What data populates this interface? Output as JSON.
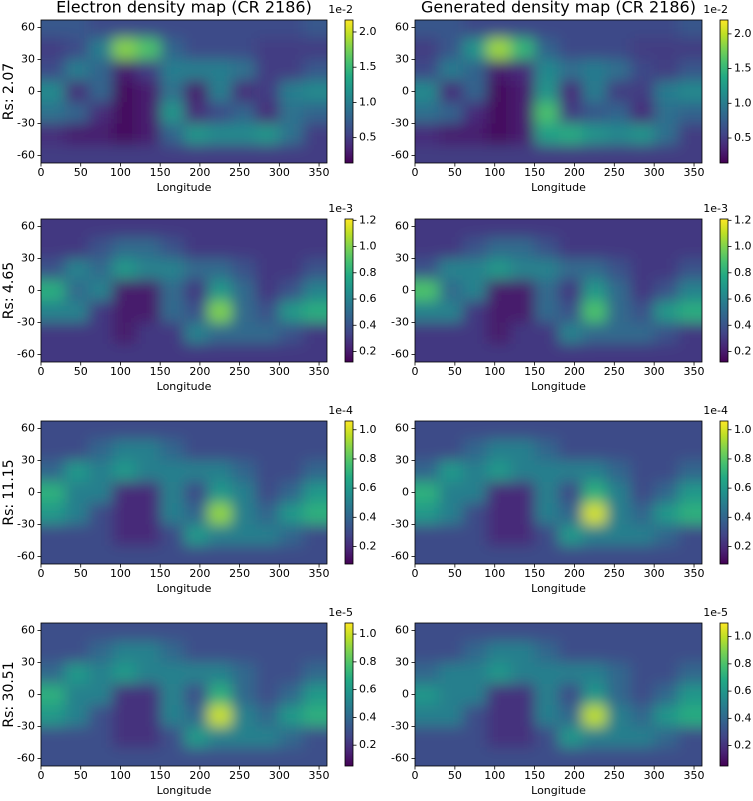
{
  "chart_data": [
    {
      "type": "heatmap",
      "title": "Electron density map (CR 2186)",
      "ylabel": "Rs: 2.07",
      "xlabel": "Longitude",
      "colormap": "viridis",
      "xlim": [
        0,
        360
      ],
      "ylim": [
        -67,
        67
      ],
      "xticks": [
        0,
        50,
        100,
        150,
        200,
        250,
        300,
        350
      ],
      "yticks": [
        -60,
        -30,
        0,
        30,
        60
      ],
      "x": [
        15,
        45,
        75,
        105,
        135,
        165,
        195,
        225,
        255,
        285,
        315,
        345
      ],
      "y": [
        60,
        40,
        20,
        0,
        -20,
        -40,
        -60
      ],
      "z": [
        [
          0.7,
          0.7,
          0.6,
          0.6,
          0.6,
          0.6,
          0.6,
          0.6,
          0.6,
          0.6,
          0.6,
          0.7
        ],
        [
          0.5,
          0.6,
          1.0,
          1.8,
          1.6,
          0.8,
          0.6,
          0.6,
          0.6,
          0.5,
          0.5,
          0.5
        ],
        [
          0.6,
          1.0,
          0.8,
          0.3,
          0.5,
          1.0,
          1.0,
          1.0,
          0.9,
          0.5,
          0.5,
          0.7
        ],
        [
          1.1,
          0.4,
          0.8,
          0.2,
          0.3,
          0.9,
          0.3,
          1.0,
          0.4,
          0.5,
          1.0,
          1.1
        ],
        [
          0.9,
          0.8,
          0.4,
          0.2,
          0.3,
          1.2,
          0.4,
          0.6,
          0.8,
          0.4,
          0.9,
          0.8
        ],
        [
          0.4,
          0.3,
          0.3,
          0.2,
          0.3,
          0.8,
          1.2,
          1.1,
          1.1,
          1.2,
          0.9,
          0.5
        ],
        [
          0.5,
          0.5,
          0.5,
          0.5,
          0.5,
          0.5,
          0.5,
          0.5,
          0.5,
          0.5,
          0.5,
          0.5
        ]
      ],
      "clim": [
        0.14,
        2.17
      ],
      "cticks": [
        0.5,
        {
          "value": 1,
          "label": "1.0"
        },
        1.5,
        {
          "value": 2,
          "label": "2.0"
        }
      ],
      "offset_label": "1e-2"
    },
    {
      "type": "heatmap",
      "title": "Generated density map (CR 2186)",
      "xlabel": "Longitude",
      "colormap": "viridis",
      "xlim": [
        0,
        360
      ],
      "ylim": [
        -67,
        67
      ],
      "xticks": [
        0,
        50,
        100,
        150,
        200,
        250,
        300,
        350
      ],
      "yticks": [
        -60,
        -30,
        0,
        30,
        60
      ],
      "x": [
        15,
        45,
        75,
        105,
        135,
        165,
        195,
        225,
        255,
        285,
        315,
        345
      ],
      "y": [
        60,
        40,
        20,
        0,
        -20,
        -40,
        -60
      ],
      "z": [
        [
          0.7,
          0.7,
          0.6,
          0.6,
          0.6,
          0.6,
          0.6,
          0.6,
          0.6,
          0.6,
          0.6,
          0.7
        ],
        [
          0.5,
          0.7,
          1.2,
          1.9,
          1.5,
          0.8,
          0.6,
          0.6,
          0.6,
          0.5,
          0.5,
          0.5
        ],
        [
          0.6,
          1.0,
          0.8,
          0.3,
          0.4,
          1.1,
          0.9,
          1.0,
          0.9,
          0.6,
          0.5,
          0.7
        ],
        [
          1.1,
          0.4,
          0.8,
          0.2,
          0.3,
          1.2,
          0.4,
          1.0,
          0.5,
          0.5,
          1.0,
          1.1
        ],
        [
          0.9,
          0.8,
          0.4,
          0.2,
          0.3,
          1.6,
          0.5,
          0.7,
          0.8,
          0.4,
          0.9,
          0.8
        ],
        [
          0.4,
          0.3,
          0.3,
          0.2,
          0.3,
          1.3,
          1.4,
          1.2,
          1.1,
          1.2,
          0.9,
          0.5
        ],
        [
          0.5,
          0.5,
          0.5,
          0.5,
          0.5,
          0.5,
          0.5,
          0.5,
          0.5,
          0.5,
          0.5,
          0.5
        ]
      ],
      "clim": [
        0.14,
        2.2
      ],
      "cticks": [
        0.5,
        {
          "value": 1,
          "label": "1.0"
        },
        1.5,
        {
          "value": 2,
          "label": "2.0"
        }
      ],
      "offset_label": "1e-2"
    },
    {
      "type": "heatmap",
      "ylabel": "Rs: 4.65",
      "xlabel": "Longitude",
      "colormap": "viridis",
      "xlim": [
        0,
        360
      ],
      "ylim": [
        -67,
        67
      ],
      "xticks": [
        0,
        50,
        100,
        150,
        200,
        250,
        300,
        350
      ],
      "yticks": [
        -60,
        -30,
        0,
        30,
        60
      ],
      "x": [
        15,
        45,
        75,
        105,
        135,
        165,
        195,
        225,
        255,
        285,
        315,
        345
      ],
      "y": [
        60,
        40,
        20,
        0,
        -20,
        -40,
        -60
      ],
      "z": [
        [
          0.3,
          0.3,
          0.3,
          0.3,
          0.3,
          0.3,
          0.3,
          0.3,
          0.3,
          0.3,
          0.3,
          0.3
        ],
        [
          0.3,
          0.3,
          0.4,
          0.5,
          0.5,
          0.4,
          0.3,
          0.3,
          0.3,
          0.3,
          0.3,
          0.3
        ],
        [
          0.4,
          0.6,
          0.5,
          0.7,
          0.6,
          0.6,
          0.5,
          0.5,
          0.4,
          0.3,
          0.3,
          0.4
        ],
        [
          0.8,
          0.5,
          0.6,
          0.2,
          0.2,
          0.5,
          0.3,
          0.7,
          0.5,
          0.3,
          0.4,
          0.6
        ],
        [
          0.6,
          0.6,
          0.3,
          0.2,
          0.2,
          0.5,
          0.4,
          1.0,
          0.5,
          0.4,
          0.7,
          0.8
        ],
        [
          0.3,
          0.3,
          0.3,
          0.2,
          0.3,
          0.3,
          0.6,
          0.5,
          0.5,
          0.5,
          0.4,
          0.3
        ],
        [
          0.3,
          0.3,
          0.3,
          0.3,
          0.3,
          0.3,
          0.3,
          0.3,
          0.3,
          0.3,
          0.3,
          0.3
        ]
      ],
      "clim": [
        0.12,
        1.21
      ],
      "cticks": [
        0.2,
        0.4,
        0.6,
        0.8,
        {
          "value": 1,
          "label": "1.0"
        },
        1.2
      ],
      "offset_label": "1e-3"
    },
    {
      "type": "heatmap",
      "xlabel": "Longitude",
      "colormap": "viridis",
      "xlim": [
        0,
        360
      ],
      "ylim": [
        -67,
        67
      ],
      "xticks": [
        0,
        50,
        100,
        150,
        200,
        250,
        300,
        350
      ],
      "yticks": [
        -60,
        -30,
        0,
        30,
        60
      ],
      "x": [
        15,
        45,
        75,
        105,
        135,
        165,
        195,
        225,
        255,
        285,
        315,
        345
      ],
      "y": [
        60,
        40,
        20,
        0,
        -20,
        -40,
        -60
      ],
      "z": [
        [
          0.3,
          0.3,
          0.3,
          0.3,
          0.3,
          0.3,
          0.3,
          0.3,
          0.3,
          0.3,
          0.3,
          0.3
        ],
        [
          0.3,
          0.3,
          0.4,
          0.5,
          0.5,
          0.4,
          0.3,
          0.3,
          0.3,
          0.3,
          0.3,
          0.3
        ],
        [
          0.4,
          0.6,
          0.6,
          0.7,
          0.6,
          0.6,
          0.5,
          0.5,
          0.4,
          0.3,
          0.3,
          0.4
        ],
        [
          0.9,
          0.5,
          0.6,
          0.2,
          0.2,
          0.5,
          0.3,
          0.7,
          0.5,
          0.3,
          0.4,
          0.6
        ],
        [
          0.6,
          0.6,
          0.3,
          0.2,
          0.2,
          0.5,
          0.4,
          0.9,
          0.5,
          0.4,
          0.7,
          0.8
        ],
        [
          0.3,
          0.3,
          0.3,
          0.2,
          0.3,
          0.3,
          0.6,
          0.5,
          0.5,
          0.5,
          0.4,
          0.3
        ],
        [
          0.3,
          0.3,
          0.3,
          0.3,
          0.3,
          0.3,
          0.3,
          0.3,
          0.3,
          0.3,
          0.3,
          0.3
        ]
      ],
      "clim": [
        0.12,
        1.21
      ],
      "cticks": [
        0.2,
        0.4,
        0.6,
        0.8,
        {
          "value": 1,
          "label": "1.0"
        },
        1.2
      ],
      "offset_label": "1e-3"
    },
    {
      "type": "heatmap",
      "ylabel": "Rs: 11.15",
      "xlabel": "Longitude",
      "colormap": "viridis",
      "xlim": [
        0,
        360
      ],
      "ylim": [
        -67,
        67
      ],
      "xticks": [
        0,
        50,
        100,
        150,
        200,
        250,
        300,
        350
      ],
      "yticks": [
        -60,
        -30,
        0,
        30,
        60
      ],
      "x": [
        15,
        45,
        75,
        105,
        135,
        165,
        195,
        225,
        255,
        285,
        315,
        345
      ],
      "y": [
        60,
        40,
        20,
        0,
        -20,
        -40,
        -60
      ],
      "z": [
        [
          0.3,
          0.3,
          0.3,
          0.3,
          0.3,
          0.3,
          0.3,
          0.3,
          0.3,
          0.3,
          0.3,
          0.3
        ],
        [
          0.3,
          0.3,
          0.4,
          0.5,
          0.5,
          0.4,
          0.3,
          0.3,
          0.3,
          0.3,
          0.3,
          0.3
        ],
        [
          0.4,
          0.6,
          0.5,
          0.6,
          0.5,
          0.5,
          0.5,
          0.5,
          0.4,
          0.3,
          0.3,
          0.4
        ],
        [
          0.7,
          0.5,
          0.5,
          0.2,
          0.2,
          0.5,
          0.3,
          0.6,
          0.5,
          0.3,
          0.4,
          0.6
        ],
        [
          0.6,
          0.5,
          0.3,
          0.2,
          0.2,
          0.5,
          0.4,
          0.9,
          0.5,
          0.4,
          0.6,
          0.7
        ],
        [
          0.3,
          0.3,
          0.3,
          0.2,
          0.2,
          0.3,
          0.6,
          0.5,
          0.5,
          0.5,
          0.4,
          0.3
        ],
        [
          0.3,
          0.3,
          0.3,
          0.3,
          0.3,
          0.3,
          0.3,
          0.3,
          0.3,
          0.3,
          0.3,
          0.3
        ]
      ],
      "clim": [
        0.08,
        1.06
      ],
      "cticks": [
        0.2,
        0.4,
        0.6,
        0.8,
        {
          "value": 1,
          "label": "1.0"
        }
      ],
      "offset_label": "1e-4"
    },
    {
      "type": "heatmap",
      "xlabel": "Longitude",
      "colormap": "viridis",
      "xlim": [
        0,
        360
      ],
      "ylim": [
        -67,
        67
      ],
      "xticks": [
        0,
        50,
        100,
        150,
        200,
        250,
        300,
        350
      ],
      "yticks": [
        -60,
        -30,
        0,
        30,
        60
      ],
      "x": [
        15,
        45,
        75,
        105,
        135,
        165,
        195,
        225,
        255,
        285,
        315,
        345
      ],
      "y": [
        60,
        40,
        20,
        0,
        -20,
        -40,
        -60
      ],
      "z": [
        [
          0.3,
          0.3,
          0.3,
          0.3,
          0.3,
          0.3,
          0.3,
          0.3,
          0.3,
          0.3,
          0.3,
          0.3
        ],
        [
          0.3,
          0.3,
          0.4,
          0.5,
          0.5,
          0.4,
          0.3,
          0.3,
          0.3,
          0.3,
          0.3,
          0.3
        ],
        [
          0.4,
          0.6,
          0.5,
          0.6,
          0.5,
          0.5,
          0.5,
          0.5,
          0.4,
          0.3,
          0.3,
          0.4
        ],
        [
          0.7,
          0.5,
          0.5,
          0.2,
          0.2,
          0.5,
          0.3,
          0.7,
          0.5,
          0.3,
          0.4,
          0.6
        ],
        [
          0.6,
          0.5,
          0.3,
          0.2,
          0.2,
          0.5,
          0.4,
          1.0,
          0.5,
          0.4,
          0.6,
          0.7
        ],
        [
          0.3,
          0.3,
          0.3,
          0.2,
          0.2,
          0.3,
          0.6,
          0.5,
          0.5,
          0.5,
          0.4,
          0.3
        ],
        [
          0.3,
          0.3,
          0.3,
          0.3,
          0.3,
          0.3,
          0.3,
          0.3,
          0.3,
          0.3,
          0.3,
          0.3
        ]
      ],
      "clim": [
        0.08,
        1.06
      ],
      "cticks": [
        0.2,
        0.4,
        0.6,
        0.8,
        {
          "value": 1,
          "label": "1.0"
        }
      ],
      "offset_label": "1e-4"
    },
    {
      "type": "heatmap",
      "ylabel": "Rs: 30.51",
      "xlabel": "Longitude",
      "colormap": "viridis",
      "xlim": [
        0,
        360
      ],
      "ylim": [
        -67,
        67
      ],
      "xticks": [
        0,
        50,
        100,
        150,
        200,
        250,
        300,
        350
      ],
      "yticks": [
        -60,
        -30,
        0,
        30,
        60
      ],
      "x": [
        15,
        45,
        75,
        105,
        135,
        165,
        195,
        225,
        255,
        285,
        315,
        345
      ],
      "y": [
        60,
        40,
        20,
        0,
        -20,
        -40,
        -60
      ],
      "z": [
        [
          0.3,
          0.3,
          0.3,
          0.3,
          0.3,
          0.3,
          0.3,
          0.3,
          0.3,
          0.3,
          0.3,
          0.3
        ],
        [
          0.3,
          0.3,
          0.4,
          0.5,
          0.5,
          0.4,
          0.3,
          0.3,
          0.3,
          0.3,
          0.3,
          0.3
        ],
        [
          0.4,
          0.6,
          0.5,
          0.6,
          0.5,
          0.5,
          0.5,
          0.5,
          0.4,
          0.3,
          0.3,
          0.4
        ],
        [
          0.7,
          0.5,
          0.5,
          0.2,
          0.2,
          0.5,
          0.3,
          0.7,
          0.4,
          0.3,
          0.4,
          0.6
        ],
        [
          0.6,
          0.5,
          0.3,
          0.2,
          0.2,
          0.5,
          0.4,
          1.0,
          0.5,
          0.4,
          0.6,
          0.7
        ],
        [
          0.3,
          0.3,
          0.3,
          0.2,
          0.2,
          0.3,
          0.6,
          0.5,
          0.5,
          0.5,
          0.4,
          0.3
        ],
        [
          0.3,
          0.3,
          0.3,
          0.3,
          0.3,
          0.3,
          0.3,
          0.3,
          0.3,
          0.3,
          0.3,
          0.3
        ]
      ],
      "clim": [
        0.05,
        1.08
      ],
      "cticks": [
        0.2,
        0.4,
        0.6,
        0.8,
        {
          "value": 1,
          "label": "1.0"
        }
      ],
      "offset_label": "1e-5"
    },
    {
      "type": "heatmap",
      "xlabel": "Longitude",
      "colormap": "viridis",
      "xlim": [
        0,
        360
      ],
      "ylim": [
        -67,
        67
      ],
      "xticks": [
        0,
        50,
        100,
        150,
        200,
        250,
        300,
        350
      ],
      "yticks": [
        -60,
        -30,
        0,
        30,
        60
      ],
      "x": [
        15,
        45,
        75,
        105,
        135,
        165,
        195,
        225,
        255,
        285,
        315,
        345
      ],
      "y": [
        60,
        40,
        20,
        0,
        -20,
        -40,
        -60
      ],
      "z": [
        [
          0.3,
          0.3,
          0.3,
          0.3,
          0.3,
          0.3,
          0.3,
          0.3,
          0.3,
          0.3,
          0.3,
          0.3
        ],
        [
          0.3,
          0.3,
          0.4,
          0.5,
          0.5,
          0.4,
          0.3,
          0.3,
          0.3,
          0.3,
          0.3,
          0.3
        ],
        [
          0.4,
          0.5,
          0.5,
          0.6,
          0.5,
          0.5,
          0.5,
          0.5,
          0.4,
          0.3,
          0.3,
          0.4
        ],
        [
          0.6,
          0.5,
          0.5,
          0.2,
          0.2,
          0.5,
          0.3,
          0.6,
          0.4,
          0.3,
          0.4,
          0.6
        ],
        [
          0.5,
          0.5,
          0.3,
          0.2,
          0.2,
          0.5,
          0.4,
          1.0,
          0.5,
          0.4,
          0.6,
          0.7
        ],
        [
          0.3,
          0.3,
          0.3,
          0.2,
          0.2,
          0.3,
          0.6,
          0.5,
          0.5,
          0.5,
          0.4,
          0.3
        ],
        [
          0.3,
          0.3,
          0.3,
          0.3,
          0.3,
          0.3,
          0.3,
          0.3,
          0.3,
          0.3,
          0.3,
          0.3
        ]
      ],
      "clim": [
        0.05,
        1.1
      ],
      "cticks": [
        0.2,
        0.4,
        0.6,
        0.8,
        {
          "value": 1,
          "label": "1.0"
        }
      ],
      "offset_label": "1e-5"
    }
  ]
}
